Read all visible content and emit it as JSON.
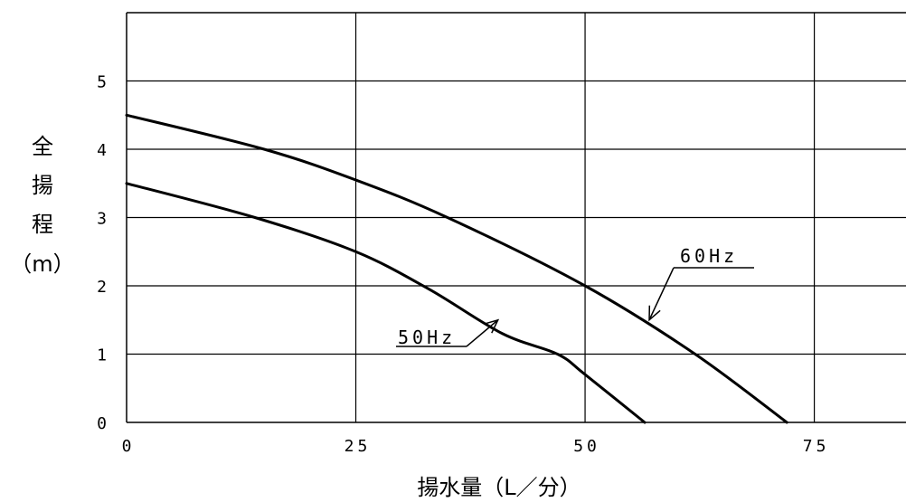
{
  "chart_data": {
    "type": "line",
    "xlabel": "揚水量（L／分）",
    "ylabel": "全揚程（m）",
    "ylabel_lines": [
      "全",
      "揚",
      "程",
      "（m）"
    ],
    "xlim": [
      0,
      85
    ],
    "ylim": [
      0,
      6
    ],
    "xticks": [
      0,
      25,
      50,
      75
    ],
    "yticks": [
      0,
      1,
      2,
      3,
      4,
      5
    ],
    "xtick_labels": [
      "0",
      "25",
      "50",
      "75"
    ],
    "ytick_labels": [
      "0",
      "1",
      "2",
      "3",
      "4",
      "5"
    ],
    "grid": true,
    "series": [
      {
        "name": "60Hz",
        "x": [
          0,
          15,
          25,
          35,
          50,
          62,
          72
        ],
        "y": [
          4.5,
          4.0,
          3.55,
          3.0,
          2.0,
          1.0,
          0
        ]
      },
      {
        "name": "50Hz",
        "x": [
          0,
          14,
          25,
          33,
          41,
          47,
          50,
          56.5
        ],
        "y": [
          3.5,
          3.0,
          2.5,
          1.95,
          1.3,
          1.0,
          0.7,
          0
        ]
      }
    ],
    "annotations": [
      {
        "text": "60Hz",
        "series": "60Hz",
        "target": [
          57,
          1.5
        ],
        "label_pos": "upper-right"
      },
      {
        "text": "50Hz",
        "series": "50Hz",
        "target": [
          40.5,
          1.5
        ],
        "label_pos": "lower-left"
      }
    ]
  }
}
